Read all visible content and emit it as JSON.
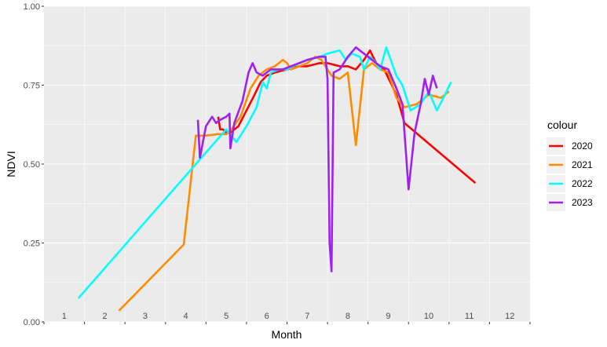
{
  "chart_data": {
    "type": "line",
    "xlabel": "Month",
    "ylabel": "NDVI",
    "xlim": [
      0.5,
      12.5
    ],
    "ylim": [
      0,
      1
    ],
    "x_tick_labels": [
      "1",
      "2",
      "3",
      "4",
      "5",
      "6",
      "7",
      "8",
      "9",
      "10",
      "11",
      "12"
    ],
    "y_ticks": [
      0,
      0.25,
      0.5,
      0.75,
      1
    ],
    "y_tick_labels": [
      "0.00",
      "0.25",
      "0.50",
      "0.75",
      "1.00"
    ],
    "grid": true,
    "legend": {
      "title": "colour",
      "position": "right"
    },
    "series": [
      {
        "name": "2020",
        "color": "#ff0000",
        "points": [
          [
            4.8,
            0.65
          ],
          [
            4.85,
            0.61
          ],
          [
            4.92,
            0.61
          ],
          [
            5.0,
            0.6
          ],
          [
            5.1,
            0.6
          ],
          [
            5.3,
            0.62
          ],
          [
            5.5,
            0.67
          ],
          [
            5.7,
            0.72
          ],
          [
            5.85,
            0.76
          ],
          [
            6.0,
            0.78
          ],
          [
            6.2,
            0.79
          ],
          [
            6.5,
            0.8
          ],
          [
            6.8,
            0.81
          ],
          [
            7.0,
            0.81
          ],
          [
            7.3,
            0.82
          ],
          [
            7.5,
            0.82
          ],
          [
            7.8,
            0.81
          ],
          [
            8.0,
            0.81
          ],
          [
            8.2,
            0.8
          ],
          [
            8.4,
            0.83
          ],
          [
            8.55,
            0.86
          ],
          [
            8.7,
            0.82
          ],
          [
            8.9,
            0.8
          ],
          [
            9.05,
            0.76
          ],
          [
            9.2,
            0.72
          ],
          [
            9.4,
            0.63
          ],
          [
            11.15,
            0.44
          ]
        ]
      },
      {
        "name": "2021",
        "color": "#ff8c00",
        "points": [
          [
            2.35,
            0.035
          ],
          [
            3.95,
            0.245
          ],
          [
            4.25,
            0.59
          ],
          [
            4.5,
            0.59
          ],
          [
            4.8,
            0.595
          ],
          [
            5.0,
            0.595
          ],
          [
            5.1,
            0.605
          ],
          [
            5.35,
            0.65
          ],
          [
            5.6,
            0.74
          ],
          [
            5.8,
            0.78
          ],
          [
            6.0,
            0.8
          ],
          [
            6.2,
            0.81
          ],
          [
            6.4,
            0.83
          ],
          [
            6.5,
            0.82
          ],
          [
            6.6,
            0.8
          ],
          [
            6.8,
            0.81
          ],
          [
            7.0,
            0.82
          ],
          [
            7.2,
            0.84
          ],
          [
            7.35,
            0.83
          ],
          [
            7.6,
            0.78
          ],
          [
            7.8,
            0.77
          ],
          [
            8.0,
            0.79
          ],
          [
            8.2,
            0.56
          ],
          [
            8.4,
            0.8
          ],
          [
            8.6,
            0.82
          ],
          [
            8.8,
            0.8
          ],
          [
            9.0,
            0.79
          ],
          [
            9.2,
            0.71
          ],
          [
            9.4,
            0.68
          ],
          [
            9.7,
            0.69
          ],
          [
            10.0,
            0.72
          ],
          [
            10.3,
            0.71
          ],
          [
            10.5,
            0.73
          ]
        ]
      },
      {
        "name": "2022",
        "color": "#00ffff",
        "points": [
          [
            1.35,
            0.075
          ],
          [
            5.0,
            0.61
          ],
          [
            5.25,
            0.57
          ],
          [
            5.5,
            0.62
          ],
          [
            5.75,
            0.68
          ],
          [
            5.9,
            0.76
          ],
          [
            6.0,
            0.74
          ],
          [
            6.1,
            0.79
          ],
          [
            6.3,
            0.8
          ],
          [
            6.5,
            0.8
          ],
          [
            6.8,
            0.82
          ],
          [
            7.0,
            0.83
          ],
          [
            7.3,
            0.84
          ],
          [
            7.5,
            0.85
          ],
          [
            7.8,
            0.86
          ],
          [
            7.95,
            0.83
          ],
          [
            8.1,
            0.85
          ],
          [
            8.3,
            0.84
          ],
          [
            8.4,
            0.8
          ],
          [
            8.55,
            0.84
          ],
          [
            8.7,
            0.82
          ],
          [
            8.8,
            0.8
          ],
          [
            8.95,
            0.87
          ],
          [
            9.2,
            0.78
          ],
          [
            9.35,
            0.75
          ],
          [
            9.55,
            0.67
          ],
          [
            9.8,
            0.69
          ],
          [
            10.0,
            0.73
          ],
          [
            10.2,
            0.67
          ],
          [
            10.4,
            0.72
          ],
          [
            10.55,
            0.76
          ]
        ]
      },
      {
        "name": "2023",
        "color": "#a020f0",
        "points": [
          [
            4.3,
            0.64
          ],
          [
            4.35,
            0.52
          ],
          [
            4.5,
            0.62
          ],
          [
            4.65,
            0.65
          ],
          [
            4.75,
            0.63
          ],
          [
            4.85,
            0.64
          ],
          [
            5.0,
            0.65
          ],
          [
            5.08,
            0.66
          ],
          [
            5.1,
            0.55
          ],
          [
            5.2,
            0.63
          ],
          [
            5.4,
            0.7
          ],
          [
            5.55,
            0.79
          ],
          [
            5.65,
            0.82
          ],
          [
            5.75,
            0.79
          ],
          [
            5.9,
            0.78
          ],
          [
            6.1,
            0.8
          ],
          [
            6.4,
            0.8
          ],
          [
            6.8,
            0.82
          ],
          [
            7.0,
            0.83
          ],
          [
            7.3,
            0.84
          ],
          [
            7.45,
            0.84
          ],
          [
            7.5,
            0.77
          ],
          [
            7.55,
            0.25
          ],
          [
            7.6,
            0.16
          ],
          [
            7.65,
            0.79
          ],
          [
            7.8,
            0.8
          ],
          [
            8.0,
            0.84
          ],
          [
            8.2,
            0.87
          ],
          [
            8.4,
            0.85
          ],
          [
            8.6,
            0.83
          ],
          [
            8.8,
            0.81
          ],
          [
            9.0,
            0.8
          ],
          [
            9.2,
            0.74
          ],
          [
            9.35,
            0.69
          ],
          [
            9.5,
            0.42
          ],
          [
            9.65,
            0.6
          ],
          [
            9.8,
            0.69
          ],
          [
            9.9,
            0.77
          ],
          [
            10.0,
            0.72
          ],
          [
            10.1,
            0.78
          ],
          [
            10.2,
            0.74
          ]
        ]
      }
    ]
  }
}
